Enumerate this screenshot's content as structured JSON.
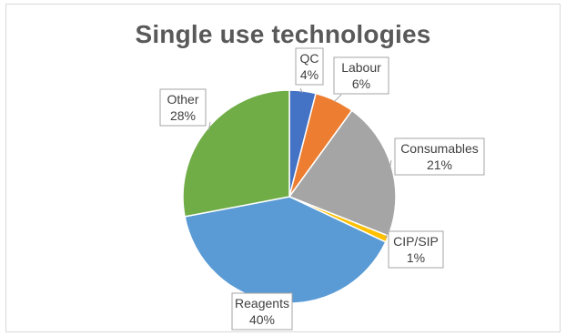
{
  "chart_data": {
    "type": "pie",
    "title": "Single use technologies",
    "slices": [
      {
        "label": "QC",
        "value": 4,
        "value_label": "4%",
        "color": "#4472c4"
      },
      {
        "label": "Labour",
        "value": 6,
        "value_label": "6%",
        "color": "#ed7d31"
      },
      {
        "label": "Consumables",
        "value": 21,
        "value_label": "21%",
        "color": "#a5a5a5"
      },
      {
        "label": "CIP/SIP",
        "value": 1,
        "value_label": "1%",
        "color": "#ffc000"
      },
      {
        "label": "Reagents",
        "value": 40,
        "value_label": "40%",
        "color": "#5b9bd5"
      },
      {
        "label": "Other",
        "value": 28,
        "value_label": "28%",
        "color": "#70ad47"
      }
    ],
    "legend": "none",
    "data_labels": "callouts"
  }
}
